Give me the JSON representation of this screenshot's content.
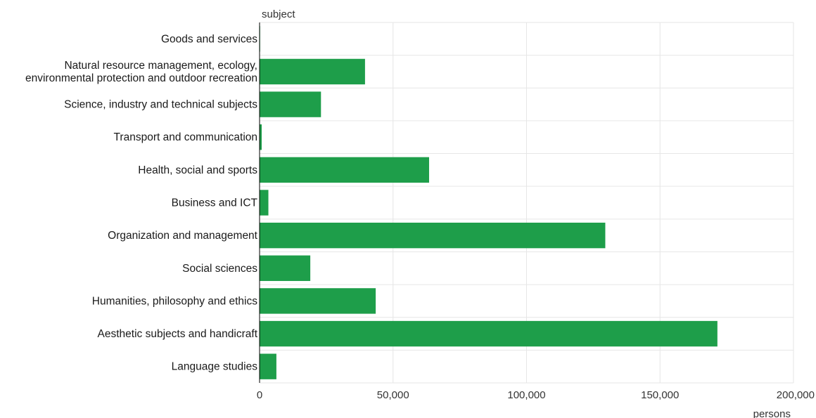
{
  "chart_data": {
    "type": "bar",
    "orientation": "horizontal",
    "ylabel": "subject",
    "xlabel": "persons",
    "categories": [
      [
        "Goods and services"
      ],
      [
        "Natural resource management, ecology,",
        "environmental protection and outdoor recreation"
      ],
      [
        "Science, industry and technical subjects"
      ],
      [
        "Transport and communication"
      ],
      [
        "Health, social and sports"
      ],
      [
        "Business and ICT"
      ],
      [
        "Organization and management"
      ],
      [
        "Social sciences"
      ],
      [
        "Humanities, philosophy and ethics"
      ],
      [
        "Aesthetic subjects and handicraft"
      ],
      [
        "Language studies"
      ]
    ],
    "values": [
      200,
      39500,
      23000,
      800,
      63500,
      3300,
      129500,
      19000,
      43500,
      171500,
      6300
    ],
    "xlim": [
      0,
      200000
    ],
    "xticks": [
      0,
      50000,
      100000,
      150000,
      200000
    ],
    "xtick_labels": [
      "0",
      "50,000",
      "100,000",
      "150,000",
      "200,000"
    ],
    "grid": true,
    "legend": "none",
    "colors": {
      "bar": "#1e9e4a",
      "grid": "#e6e6e6",
      "axis": "#000000"
    }
  }
}
